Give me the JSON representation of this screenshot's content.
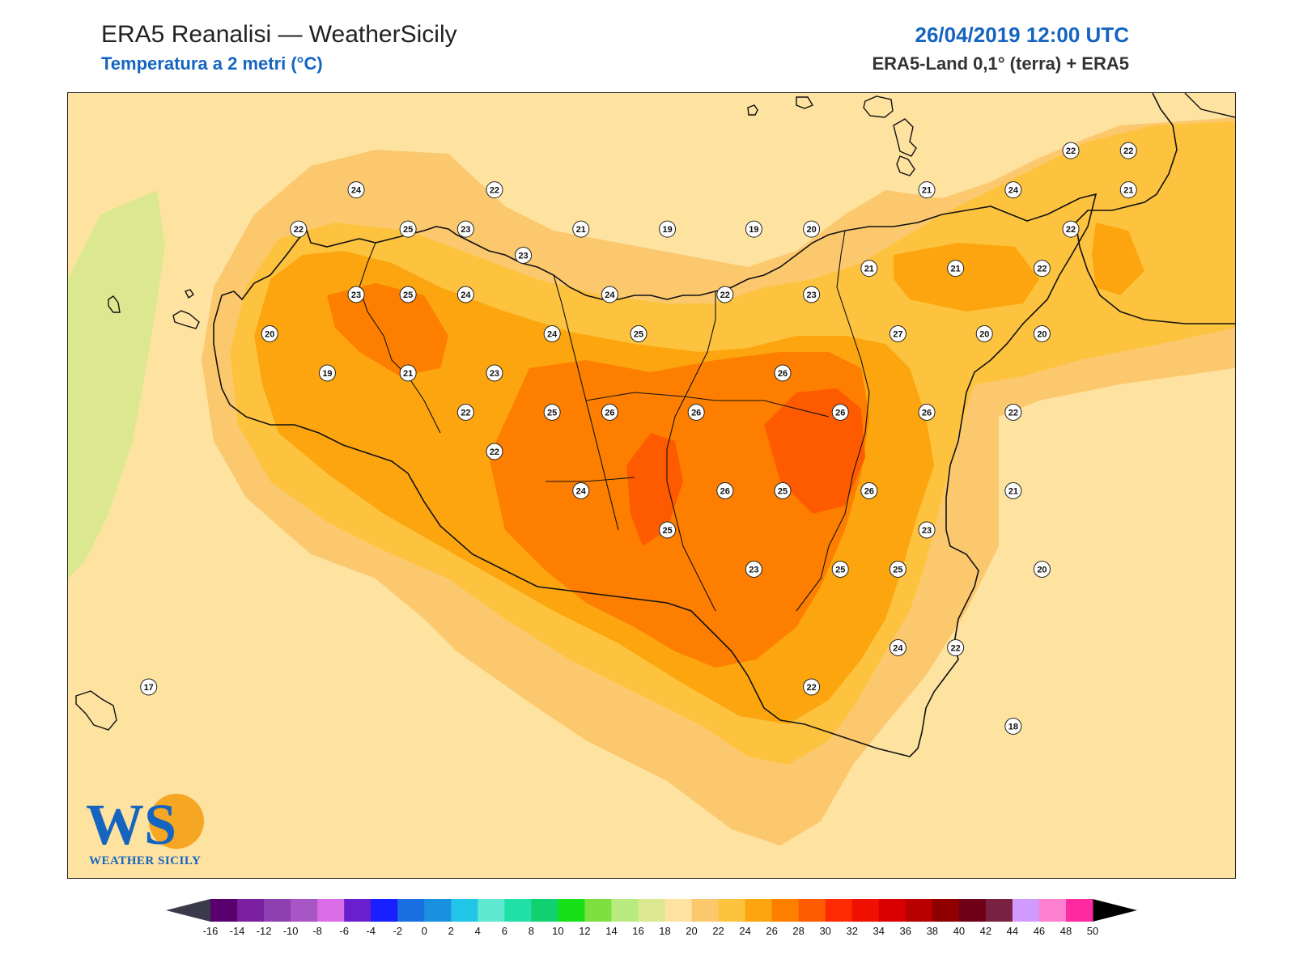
{
  "header": {
    "title": "ERA5 Reanalisi — WeatherSicily",
    "subtitle": "Temperatura a 2 metri (°C)",
    "datetime": "26/04/2019 12:00 UTC",
    "source": "ERA5-Land 0,1° (terra) + ERA5"
  },
  "logo": {
    "letters": "WS",
    "text": "WEATHER SICILY"
  },
  "stations": [
    {
      "value": "24",
      "lon": 12.7,
      "lat": 38.18
    },
    {
      "value": "22",
      "lon": 12.5,
      "lat": 38.03
    },
    {
      "value": "25",
      "lon": 12.88,
      "lat": 38.03
    },
    {
      "value": "23",
      "lon": 13.08,
      "lat": 38.03
    },
    {
      "value": "22",
      "lon": 13.18,
      "lat": 38.18
    },
    {
      "value": "23",
      "lon": 13.28,
      "lat": 37.93
    },
    {
      "value": "21",
      "lon": 13.48,
      "lat": 38.03
    },
    {
      "value": "19",
      "lon": 13.78,
      "lat": 38.03
    },
    {
      "value": "19",
      "lon": 14.08,
      "lat": 38.03
    },
    {
      "value": "20",
      "lon": 14.28,
      "lat": 38.03
    },
    {
      "value": "21",
      "lon": 14.68,
      "lat": 38.18
    },
    {
      "value": "24",
      "lon": 14.98,
      "lat": 38.18
    },
    {
      "value": "22",
      "lon": 15.18,
      "lat": 38.33
    },
    {
      "value": "22",
      "lon": 15.38,
      "lat": 38.33
    },
    {
      "value": "21",
      "lon": 15.38,
      "lat": 38.18
    },
    {
      "value": "22",
      "lon": 15.18,
      "lat": 38.03
    },
    {
      "value": "21",
      "lon": 14.48,
      "lat": 37.88
    },
    {
      "value": "21",
      "lon": 14.78,
      "lat": 37.88
    },
    {
      "value": "22",
      "lon": 15.08,
      "lat": 37.88
    },
    {
      "value": "23",
      "lon": 12.7,
      "lat": 37.78
    },
    {
      "value": "25",
      "lon": 12.88,
      "lat": 37.78
    },
    {
      "value": "24",
      "lon": 13.08,
      "lat": 37.78
    },
    {
      "value": "24",
      "lon": 13.58,
      "lat": 37.78
    },
    {
      "value": "22",
      "lon": 13.98,
      "lat": 37.78
    },
    {
      "value": "23",
      "lon": 14.28,
      "lat": 37.78
    },
    {
      "value": "20",
      "lon": 12.4,
      "lat": 37.63
    },
    {
      "value": "24",
      "lon": 13.38,
      "lat": 37.63
    },
    {
      "value": "25",
      "lon": 13.68,
      "lat": 37.63
    },
    {
      "value": "27",
      "lon": 14.58,
      "lat": 37.63
    },
    {
      "value": "20",
      "lon": 14.88,
      "lat": 37.63
    },
    {
      "value": "20",
      "lon": 15.08,
      "lat": 37.63
    },
    {
      "value": "19",
      "lon": 12.6,
      "lat": 37.48
    },
    {
      "value": "21",
      "lon": 12.88,
      "lat": 37.48
    },
    {
      "value": "23",
      "lon": 13.18,
      "lat": 37.48
    },
    {
      "value": "26",
      "lon": 14.18,
      "lat": 37.48
    },
    {
      "value": "22",
      "lon": 13.08,
      "lat": 37.33
    },
    {
      "value": "25",
      "lon": 13.38,
      "lat": 37.33
    },
    {
      "value": "26",
      "lon": 13.58,
      "lat": 37.33
    },
    {
      "value": "26",
      "lon": 13.88,
      "lat": 37.33
    },
    {
      "value": "26",
      "lon": 14.38,
      "lat": 37.33
    },
    {
      "value": "26",
      "lon": 14.68,
      "lat": 37.33
    },
    {
      "value": "22",
      "lon": 14.98,
      "lat": 37.33
    },
    {
      "value": "22",
      "lon": 13.18,
      "lat": 37.18
    },
    {
      "value": "24",
      "lon": 13.48,
      "lat": 37.03
    },
    {
      "value": "26",
      "lon": 13.98,
      "lat": 37.03
    },
    {
      "value": "25",
      "lon": 14.18,
      "lat": 37.03
    },
    {
      "value": "26",
      "lon": 14.48,
      "lat": 37.03
    },
    {
      "value": "21",
      "lon": 14.98,
      "lat": 37.03
    },
    {
      "value": "25",
      "lon": 13.78,
      "lat": 36.88
    },
    {
      "value": "23",
      "lon": 14.68,
      "lat": 36.88
    },
    {
      "value": "23",
      "lon": 14.08,
      "lat": 36.73
    },
    {
      "value": "25",
      "lon": 14.38,
      "lat": 36.73
    },
    {
      "value": "25",
      "lon": 14.58,
      "lat": 36.73
    },
    {
      "value": "20",
      "lon": 15.08,
      "lat": 36.73
    },
    {
      "value": "24",
      "lon": 14.58,
      "lat": 36.43
    },
    {
      "value": "22",
      "lon": 14.78,
      "lat": 36.43
    },
    {
      "value": "22",
      "lon": 14.28,
      "lat": 36.28
    },
    {
      "value": "18",
      "lon": 14.98,
      "lat": 36.13
    },
    {
      "value": "17",
      "lon": 11.98,
      "lat": 36.28
    }
  ],
  "colorbar": {
    "ticks": [
      "-16",
      "-14",
      "-12",
      "-10",
      "-8",
      "-6",
      "-4",
      "-2",
      "0",
      "2",
      "4",
      "6",
      "8",
      "10",
      "12",
      "14",
      "16",
      "18",
      "20",
      "22",
      "24",
      "26",
      "28",
      "30",
      "32",
      "34",
      "36",
      "38",
      "40",
      "42",
      "44",
      "46",
      "48",
      "50"
    ],
    "colors": [
      "#3d0042",
      "#5a006e",
      "#7a1fa0",
      "#8e3fb0",
      "#a855c5",
      "#db6ee8",
      "#6a1fcf",
      "#1820ff",
      "#1a6fe0",
      "#1a90e0",
      "#20c5e8",
      "#5ee8d0",
      "#20e0a8",
      "#10d070",
      "#18e018",
      "#7ee040",
      "#b8ea80",
      "#dce890",
      "#fde2a0",
      "#fcc86e",
      "#fdc33e",
      "#fca50e",
      "#fe7f00",
      "#fe5b00",
      "#fe2a00",
      "#f01000",
      "#d80000",
      "#b80000",
      "#900000",
      "#700018",
      "#7a2040",
      "#d09aff",
      "#ff80d0",
      "#ff2aa0",
      "#888888",
      "#444444"
    ],
    "under_color": "#3a3a4a",
    "over_color": "#000000"
  },
  "map_colors": {
    "sea": "#fde2a0",
    "band_20": "#fcc86e",
    "band_22": "#fdc33e",
    "band_24": "#fca50e",
    "band_26": "#fe7f00",
    "band_28": "#fe5b00",
    "cold": "#dce890",
    "coast": "#111111"
  }
}
